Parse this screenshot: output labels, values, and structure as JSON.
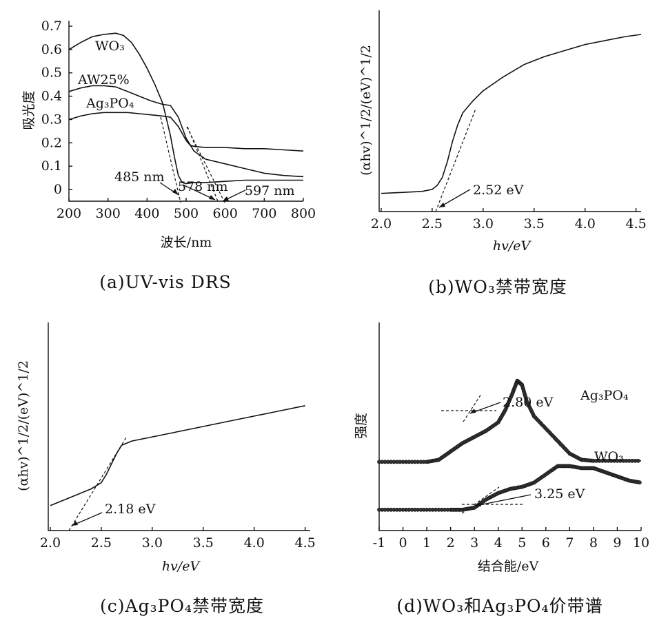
{
  "chart_data": [
    {
      "type": "line",
      "panel": "a",
      "caption": "(a)UV-vis DRS",
      "xlabel": "波长/nm",
      "ylabel": "吸光度",
      "xlim": [
        200,
        800
      ],
      "ylim": [
        -0.05,
        0.7
      ],
      "x_ticks": [
        "200",
        "300",
        "400",
        "500",
        "600",
        "700",
        "800"
      ],
      "y_ticks": [
        "0",
        "0.1",
        "0.2",
        "0.3",
        "0.4",
        "0.5",
        "0.6",
        "0.7"
      ],
      "series": [
        {
          "name": "WO3",
          "label": "WO₃",
          "x": [
            200,
            230,
            260,
            290,
            320,
            340,
            360,
            380,
            400,
            420,
            440,
            450,
            460,
            470,
            480,
            490,
            500,
            520,
            550,
            600,
            650,
            700,
            750,
            800
          ],
          "y": [
            0.6,
            0.63,
            0.655,
            0.665,
            0.67,
            0.66,
            0.63,
            0.58,
            0.52,
            0.45,
            0.37,
            0.3,
            0.23,
            0.14,
            0.06,
            0.03,
            0.025,
            0.03,
            0.03,
            0.035,
            0.04,
            0.04,
            0.04,
            0.04
          ]
        },
        {
          "name": "AW25%",
          "label": "AW25%",
          "x": [
            200,
            230,
            260,
            290,
            320,
            350,
            380,
            410,
            440,
            460,
            480,
            500,
            520,
            550,
            600,
            650,
            700,
            750,
            800
          ],
          "y": [
            0.42,
            0.435,
            0.445,
            0.445,
            0.44,
            0.42,
            0.4,
            0.38,
            0.365,
            0.36,
            0.31,
            0.22,
            0.165,
            0.13,
            0.11,
            0.09,
            0.07,
            0.06,
            0.055
          ]
        },
        {
          "name": "Ag3PO4",
          "label": "Ag₃PO₄",
          "x": [
            200,
            230,
            260,
            290,
            320,
            350,
            380,
            410,
            440,
            460,
            480,
            500,
            510,
            520,
            550,
            600,
            650,
            700,
            750,
            800
          ],
          "y": [
            0.3,
            0.315,
            0.325,
            0.33,
            0.33,
            0.33,
            0.325,
            0.32,
            0.315,
            0.31,
            0.27,
            0.21,
            0.19,
            0.185,
            0.18,
            0.18,
            0.175,
            0.175,
            0.17,
            0.165
          ]
        }
      ],
      "annotations": [
        {
          "text": "485 nm",
          "x": 485
        },
        {
          "text": "578 nm",
          "x": 578
        },
        {
          "text": "597 nm",
          "x": 597
        }
      ]
    },
    {
      "type": "line",
      "panel": "b",
      "caption": "(b)WO₃禁带宽度",
      "xlabel": "hv/eV",
      "ylabel": "(αhv)^1/2/(eV)^1/2",
      "xlim": [
        1.98,
        4.55
      ],
      "x_ticks": [
        "2.0",
        "2.5",
        "3.0",
        "3.5",
        "4.0",
        "4.5"
      ],
      "series": [
        {
          "name": "WO3",
          "x": [
            2.0,
            2.2,
            2.4,
            2.5,
            2.55,
            2.6,
            2.65,
            2.7,
            2.75,
            2.8,
            2.9,
            3.0,
            3.2,
            3.4,
            3.6,
            3.8,
            4.0,
            4.2,
            4.4,
            4.55
          ],
          "y": [
            0.09,
            0.095,
            0.1,
            0.11,
            0.13,
            0.17,
            0.25,
            0.35,
            0.43,
            0.49,
            0.55,
            0.6,
            0.67,
            0.73,
            0.77,
            0.8,
            0.83,
            0.85,
            0.87,
            0.88
          ]
        }
      ],
      "annotations": [
        {
          "text": "2.52 eV",
          "x": 2.52
        }
      ]
    },
    {
      "type": "line",
      "panel": "c",
      "caption": "(c)Ag₃PO₄禁带宽度",
      "xlabel": "hv/eV",
      "ylabel": "(αhv)^1/2/(eV)^1/2",
      "xlim": [
        1.98,
        4.55
      ],
      "x_ticks": [
        "2.0",
        "2.5",
        "3.0",
        "3.5",
        "4.0",
        "4.5"
      ],
      "series": [
        {
          "name": "Ag3PO4",
          "x": [
            2.0,
            2.2,
            2.4,
            2.5,
            2.55,
            2.6,
            2.65,
            2.7,
            2.8,
            3.0,
            3.2,
            3.5,
            3.8,
            4.0,
            4.2,
            4.5
          ],
          "y": [
            0.12,
            0.16,
            0.2,
            0.23,
            0.27,
            0.32,
            0.37,
            0.41,
            0.43,
            0.45,
            0.47,
            0.5,
            0.53,
            0.55,
            0.57,
            0.6
          ]
        }
      ],
      "annotations": [
        {
          "text": "2.18 eV",
          "x": 2.18
        }
      ]
    },
    {
      "type": "scatter",
      "panel": "d",
      "caption": "(d)WO₃和Ag₃PO₄价带谱",
      "xlabel": "结合能/eV",
      "ylabel": "强度",
      "xlim": [
        -1,
        10
      ],
      "x_ticks": [
        "-1",
        "0",
        "1",
        "2",
        "3",
        "4",
        "5",
        "6",
        "7",
        "8",
        "9",
        "10"
      ],
      "series": [
        {
          "name": "Ag3PO4",
          "label": "Ag₃PO₄",
          "x": [
            -1,
            0,
            1,
            1.5,
            2,
            2.5,
            3,
            3.5,
            4,
            4.3,
            4.6,
            4.8,
            5.0,
            5.2,
            5.5,
            6,
            6.5,
            7,
            7.5,
            8,
            9,
            10
          ],
          "y": [
            0.33,
            0.33,
            0.33,
            0.34,
            0.38,
            0.42,
            0.45,
            0.48,
            0.52,
            0.58,
            0.66,
            0.72,
            0.7,
            0.62,
            0.55,
            0.49,
            0.43,
            0.37,
            0.34,
            0.335,
            0.335,
            0.335
          ]
        },
        {
          "name": "WO3",
          "label": "WO₃",
          "x": [
            -1,
            0,
            1,
            2,
            2.5,
            3,
            3.5,
            4,
            4.5,
            5,
            5.5,
            6,
            6.5,
            7,
            7.5,
            8,
            8.5,
            9,
            9.5,
            10
          ],
          "y": [
            0.1,
            0.1,
            0.1,
            0.1,
            0.1,
            0.11,
            0.15,
            0.18,
            0.2,
            0.21,
            0.23,
            0.27,
            0.31,
            0.31,
            0.3,
            0.3,
            0.28,
            0.26,
            0.24,
            0.23
          ]
        }
      ],
      "annotations": [
        {
          "text": "2.80 eV",
          "x": 2.8
        },
        {
          "text": "3.25 eV",
          "x": 3.25
        }
      ]
    }
  ]
}
